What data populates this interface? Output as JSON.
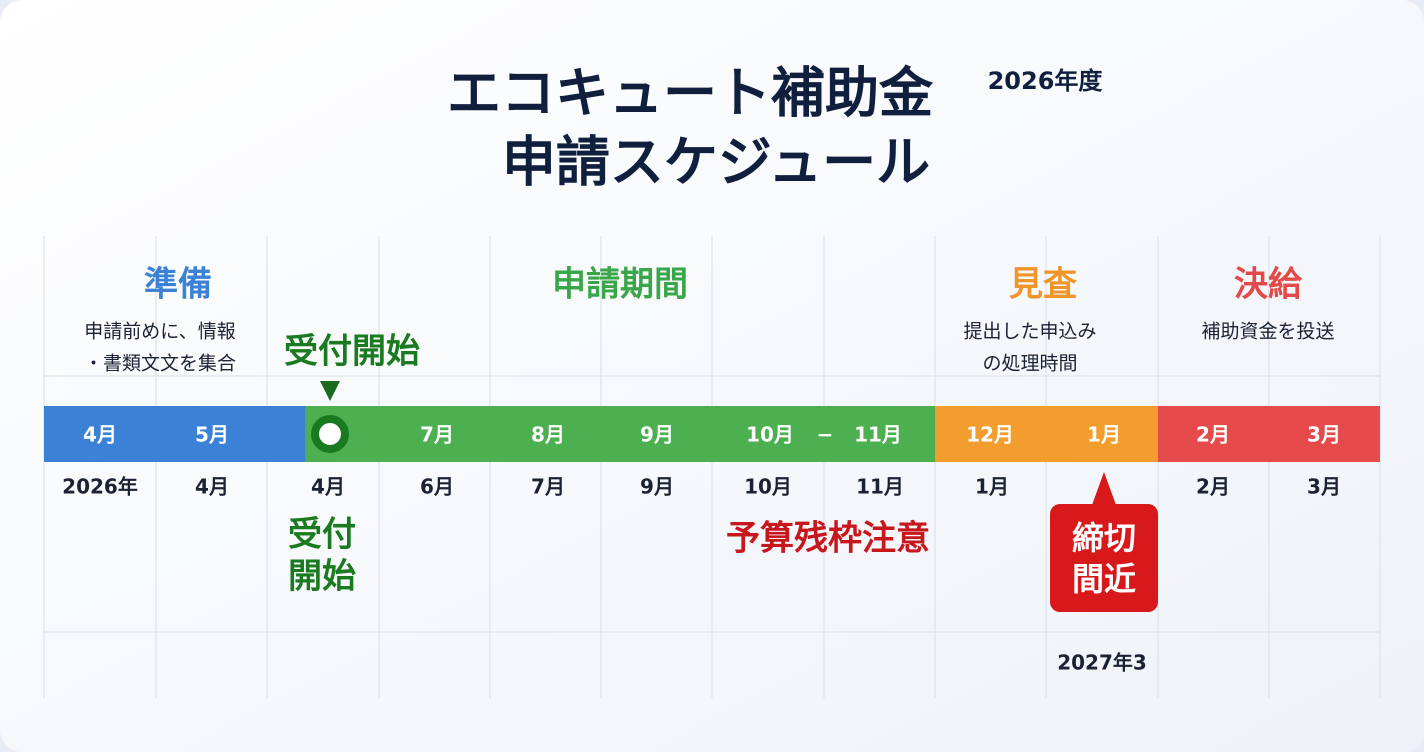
{
  "title": {
    "main": "エコキュート補助金",
    "year": "2026年度",
    "sub": "申請スケジュール"
  },
  "phases": [
    {
      "label": "準備",
      "lines": [
        "申請前めに、情報",
        "・書類文文を集合"
      ]
    },
    {
      "label": "申請期間"
    },
    {
      "label": "見査",
      "lines": [
        "提出した申込み",
        "の処理時間"
      ]
    },
    {
      "label": "決給",
      "lines": [
        "補助資金を投送"
      ]
    }
  ],
  "start_label": "受付開始",
  "bar_months": [
    "4月",
    "5月",
    "7月",
    "8月",
    "9月",
    "10月",
    "−",
    "11月",
    "12月",
    "1月",
    "2月",
    "3月"
  ],
  "row_labels": [
    "2026年",
    "4月",
    "4月",
    "6月",
    "7月",
    "9月",
    "10月",
    "11月",
    "1月",
    "2月",
    "3月"
  ],
  "notes": {
    "start": [
      "受付",
      "開始"
    ],
    "budget": "予算残枠注意",
    "deadline": [
      "締切",
      "間近"
    ],
    "end": "2027年3"
  }
}
